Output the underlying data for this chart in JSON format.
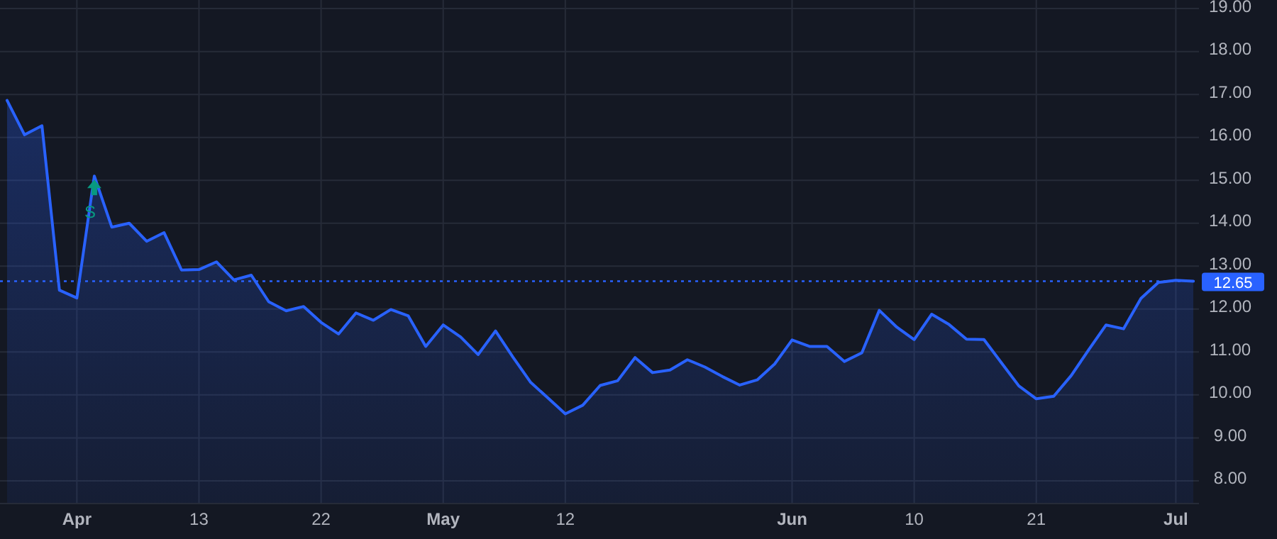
{
  "chart_data": {
    "type": "area",
    "categories": [
      null,
      null,
      null,
      null,
      "Apr",
      null,
      null,
      null,
      null,
      null,
      null,
      "13",
      null,
      null,
      null,
      null,
      null,
      null,
      "22",
      null,
      null,
      null,
      null,
      null,
      null,
      "May",
      null,
      null,
      null,
      null,
      null,
      null,
      "12",
      null,
      null,
      null,
      null,
      null,
      null,
      null,
      null,
      null,
      null,
      null,
      null,
      "Jun",
      null,
      null,
      null,
      null,
      null,
      null,
      "10",
      null,
      null,
      null,
      null,
      null,
      null,
      "21",
      null,
      null,
      null,
      null,
      null,
      null,
      null,
      "Jul",
      null
    ],
    "series": [
      {
        "color": "#2962ff",
        "values": [
          16.86,
          16.06,
          16.27,
          12.44,
          12.26,
          15.1,
          13.91,
          14.0,
          13.58,
          13.78,
          12.91,
          12.92,
          13.1,
          12.68,
          12.79,
          12.17,
          11.96,
          12.06,
          11.69,
          11.42,
          11.91,
          11.74,
          11.99,
          11.84,
          11.13,
          11.63,
          11.35,
          10.94,
          11.49,
          10.88,
          10.3,
          9.93,
          9.56,
          9.76,
          10.22,
          10.33,
          10.87,
          10.52,
          10.58,
          10.82,
          10.65,
          10.43,
          10.23,
          10.35,
          10.72,
          11.28,
          11.13,
          11.13,
          10.78,
          10.98,
          11.97,
          11.58,
          11.29,
          11.88,
          11.64,
          11.3,
          11.29,
          10.75,
          10.21,
          9.91,
          9.97,
          10.45,
          11.05,
          11.63,
          11.54,
          12.25,
          12.62,
          12.67,
          12.65
        ]
      }
    ],
    "ylim": [
      7.47,
      19.2
    ],
    "yticks": [
      {
        "value": 8,
        "label": "8.00"
      },
      {
        "value": 9,
        "label": "9.00"
      },
      {
        "value": 10,
        "label": "10.00"
      },
      {
        "value": 11,
        "label": "11.00"
      },
      {
        "value": 12,
        "label": "12.00"
      },
      {
        "value": 13,
        "label": "13.00"
      },
      {
        "value": 14,
        "label": "14.00"
      },
      {
        "value": 15,
        "label": "15.00"
      },
      {
        "value": 16,
        "label": "16.00"
      },
      {
        "value": 17,
        "label": "17.00"
      },
      {
        "value": 18,
        "label": "18.00"
      },
      {
        "value": 19,
        "label": "19.00"
      }
    ],
    "grid": true,
    "ref_lines": [
      {
        "axis": "y",
        "value": 12.65,
        "label": "12.65",
        "color": "#2962ff",
        "line_style": "dotted"
      }
    ],
    "annotations": [
      {
        "text": "S",
        "y": 14.85
      }
    ]
  }
}
